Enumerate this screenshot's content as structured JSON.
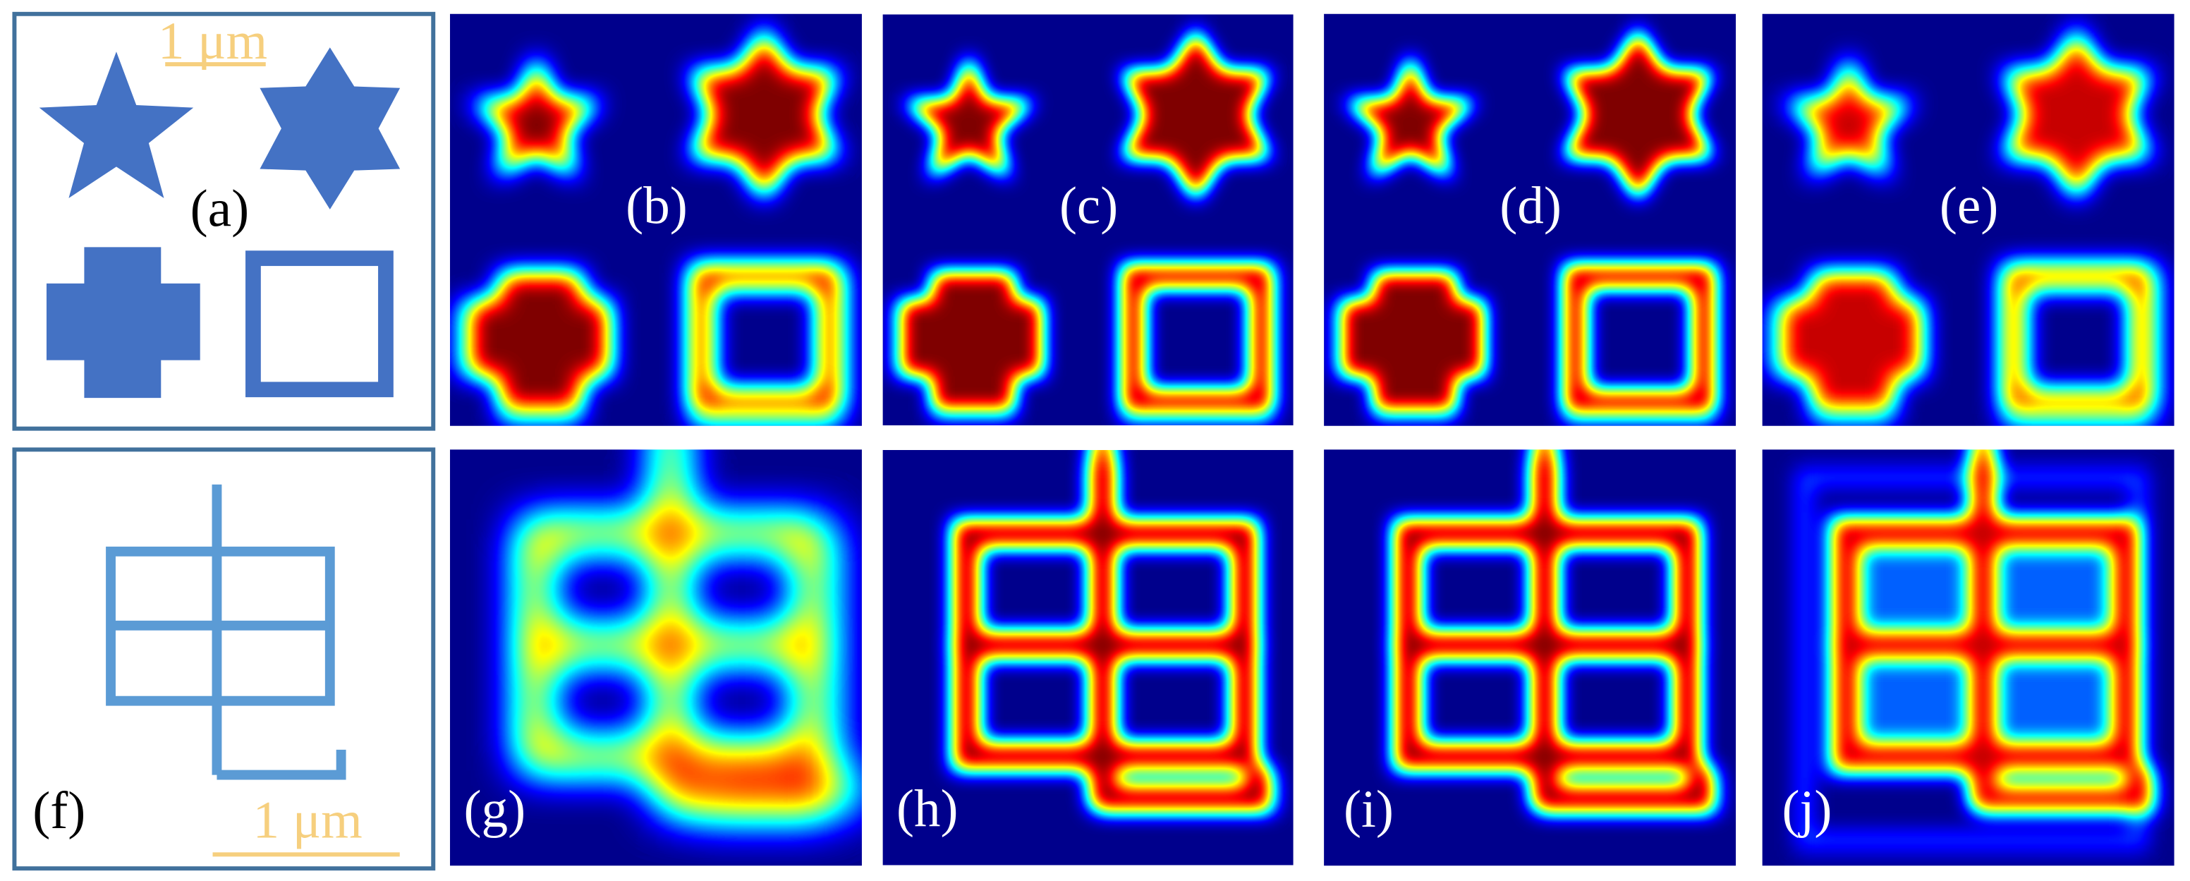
{
  "panels": [
    {
      "label": "(a)",
      "scale_bar": "1 μm"
    },
    {
      "label": "(b)"
    },
    {
      "label": "(c)"
    },
    {
      "label": "(d)"
    },
    {
      "label": "(e)"
    },
    {
      "label": "(f)",
      "scale_bar": "1 μm"
    },
    {
      "label": "(g)"
    },
    {
      "label": "(h)"
    },
    {
      "label": "(i)"
    },
    {
      "label": "(j)"
    }
  ]
}
